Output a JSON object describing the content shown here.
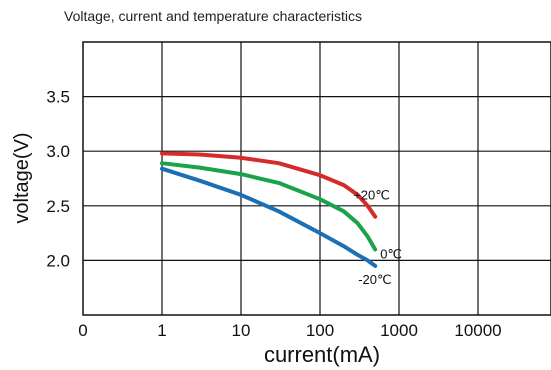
{
  "chart_data": {
    "type": "line",
    "title": "Voltage, current and temperature characteristics",
    "xlabel": "current(mA)",
    "ylabel": "voltage(V)",
    "x_scale": "log",
    "x_ticks": [
      "0",
      "1",
      "10",
      "100",
      "1000",
      "10000"
    ],
    "y_ticks": [
      "2.0",
      "2.5",
      "3.0",
      "3.5"
    ],
    "ylim": [
      1.5,
      4.0
    ],
    "grid": true,
    "colors": {
      "+20℃": "#d62b2b",
      "0℃": "#1aa34a",
      "-20℃": "#1a6fb5"
    },
    "series": [
      {
        "name": "+20℃",
        "x": [
          1,
          3,
          10,
          30,
          100,
          200,
          300,
          400,
          500
        ],
        "y": [
          2.98,
          2.97,
          2.94,
          2.89,
          2.78,
          2.69,
          2.6,
          2.5,
          2.4
        ]
      },
      {
        "name": "0℃",
        "x": [
          1,
          3,
          10,
          30,
          100,
          200,
          300,
          400,
          500
        ],
        "y": [
          2.89,
          2.85,
          2.79,
          2.71,
          2.56,
          2.45,
          2.34,
          2.22,
          2.1
        ]
      },
      {
        "name": "-20℃",
        "x": [
          1,
          3,
          10,
          30,
          100,
          200,
          300,
          400,
          500
        ],
        "y": [
          2.84,
          2.73,
          2.6,
          2.45,
          2.25,
          2.13,
          2.05,
          2.0,
          1.95
        ]
      }
    ]
  }
}
